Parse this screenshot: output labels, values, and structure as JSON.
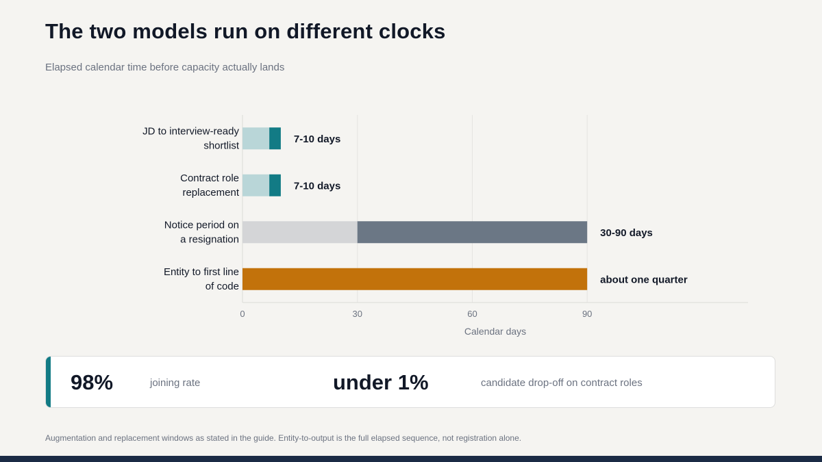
{
  "header": {
    "title": "The two models run on different clocks",
    "subtitle": "Elapsed calendar time before capacity actually lands"
  },
  "chart_data": {
    "type": "bar",
    "orientation": "horizontal",
    "stacked": true,
    "categories": [
      [
        "JD to interview-ready",
        "shortlist"
      ],
      [
        "Contract role",
        "replacement"
      ],
      [
        "Notice period on",
        "a resignation"
      ],
      [
        "Entity to first line",
        "of code"
      ]
    ],
    "bars": [
      {
        "min": 7,
        "max": 10,
        "base_color": "#b9d6d8",
        "accent_color": "#127b85",
        "value_label": "7-10 days"
      },
      {
        "min": 7,
        "max": 10,
        "base_color": "#b9d6d8",
        "accent_color": "#127b85",
        "value_label": "7-10 days"
      },
      {
        "min": 30,
        "max": 90,
        "base_color": "#d4d5d7",
        "accent_color": "#6b7785",
        "value_label": "30-90 days"
      },
      {
        "min": 0,
        "max": 90,
        "base_color": "#c2720b",
        "accent_color": "#c2720b",
        "value_label": "about one quarter"
      }
    ],
    "xlabel": "Calendar days",
    "ylabel": "",
    "xlim": [
      0,
      132
    ],
    "xticks": [
      0,
      30,
      60,
      90
    ],
    "grid": true
  },
  "stats": [
    {
      "value": "98%",
      "label": "joining rate"
    },
    {
      "value": "under 1%",
      "label": "candidate drop-off on contract roles"
    }
  ],
  "footnote": "Augmentation and replacement windows as stated in the guide. Entity-to-output is the full elapsed sequence, not registration alone.",
  "colors": {
    "accent": "#127b85",
    "bottom_bar": "#1b2b45",
    "background": "#f5f4f1"
  }
}
